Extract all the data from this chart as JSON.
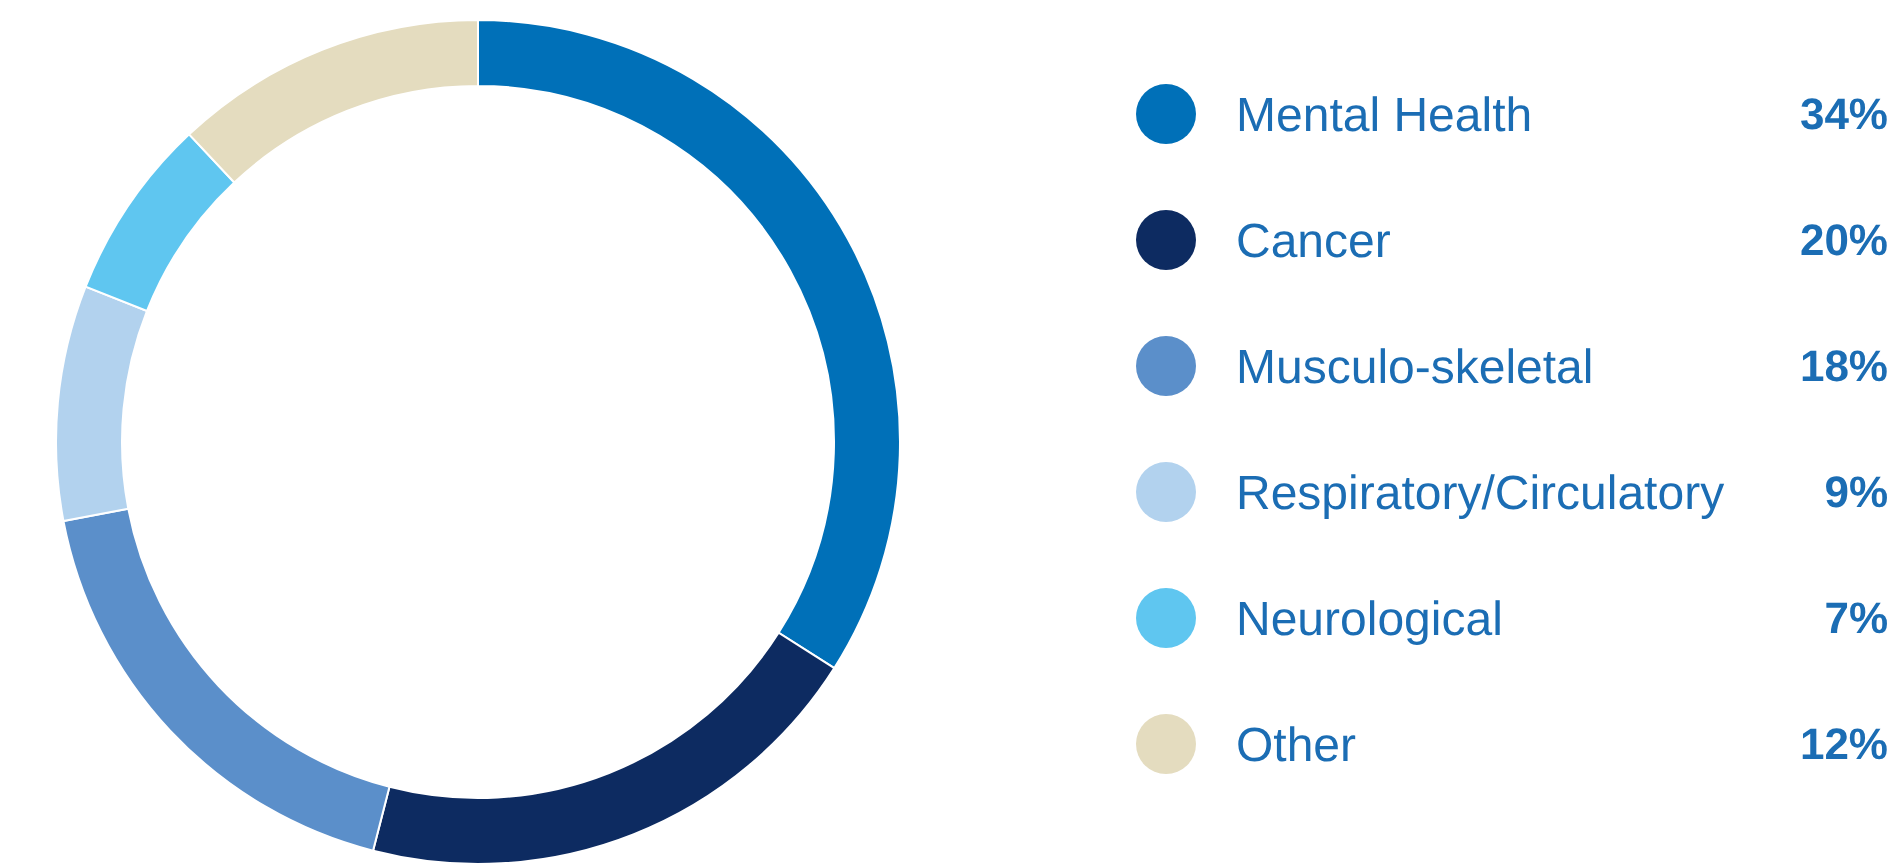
{
  "chart_data": {
    "type": "donut",
    "categories": [
      "Mental Health",
      "Cancer",
      "Musculo-skeletal",
      "Respiratory/Circulatory",
      "Neurological",
      "Other"
    ],
    "values": [
      34,
      20,
      18,
      9,
      7,
      12
    ],
    "value_labels": [
      "34%",
      "20%",
      "18%",
      "9%",
      "7%",
      "12%"
    ],
    "colors": [
      "#0070b8",
      "#0d2b61",
      "#5b8fca",
      "#b2d2ee",
      "#5fc6f0",
      "#e4dcbf"
    ],
    "legend": "right"
  }
}
